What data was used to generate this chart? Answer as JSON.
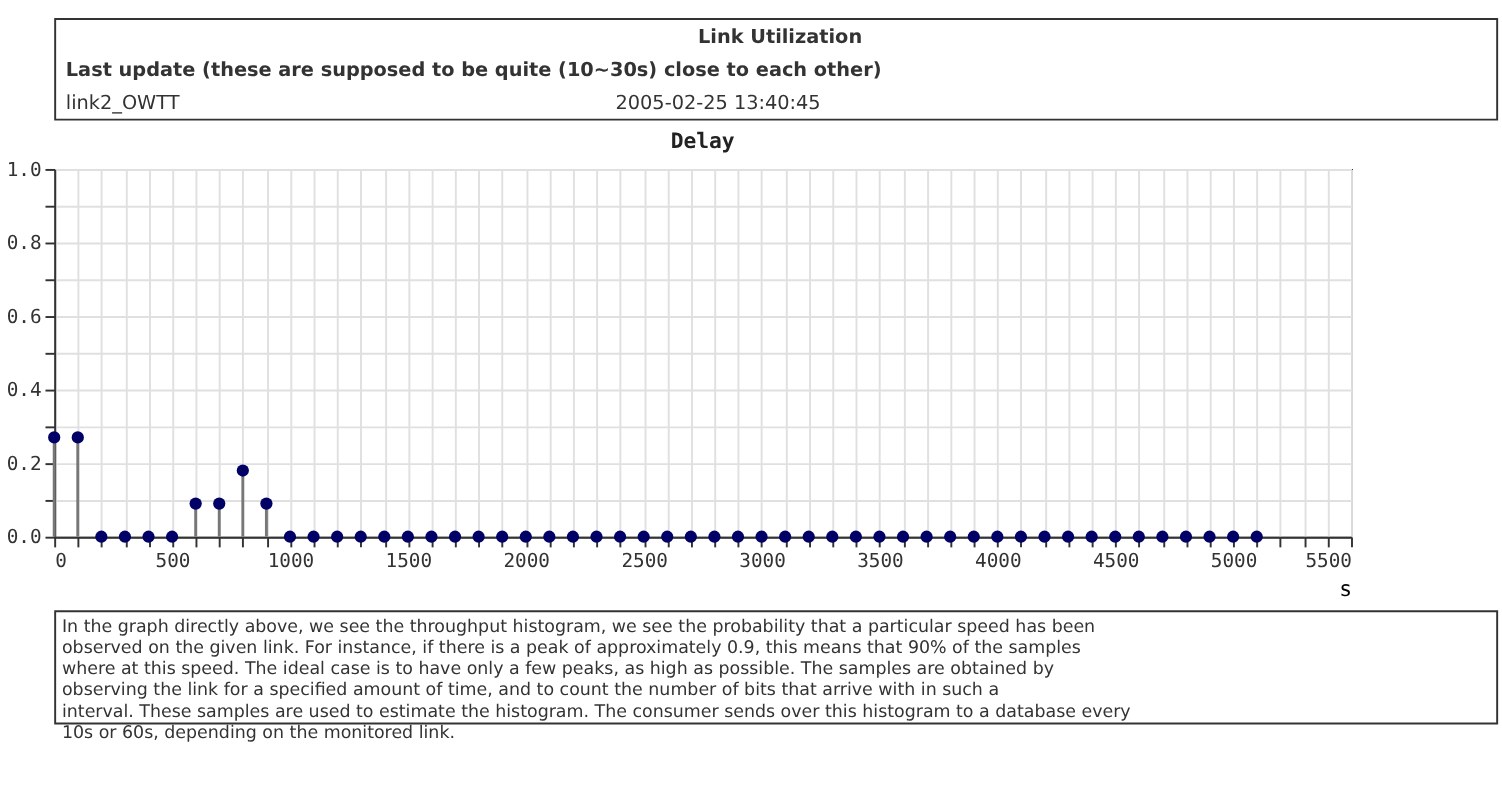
{
  "chart_data": {
    "type": "lollipop",
    "title": "Delay",
    "xlabel": "s",
    "annotations": [
      "Link Utilization",
      "Last update (these are supposed to be quite (10~30s) close to each other)",
      "link2_OWTT",
      "2005-02-25 13:40:45",
      "In the graph directly above, we see the throughput histogram, we see the probability that a particular speed has been observed on the given link. For instance, if there is a peak of approximately 0.9, this means that 90% of the samples where at this speed. The ideal case is to have only a few peaks, as high as possible. The samples are obtained by observing the link for a specified amount of time, and to count the number of bits that arrive with in such a interval. These samples are used to estimate the histogram. The consumer sends over this histogram to a database every 10s or 60s, depending on the monitored link."
    ],
    "x": [
      0,
      100,
      200,
      300,
      400,
      500,
      600,
      700,
      800,
      900,
      1000,
      1100,
      1200,
      1300,
      1400,
      1500,
      1600,
      1700,
      1800,
      1900,
      2000,
      2100,
      2200,
      2300,
      2400,
      2500,
      2600,
      2700,
      2800,
      2900,
      3000,
      3100,
      3200,
      3300,
      3400,
      3500,
      3600,
      3700,
      3800,
      3900,
      4000,
      4100,
      4200,
      4300,
      4400,
      4500,
      4600,
      4700,
      4800,
      4900,
      5000,
      5100
    ],
    "series": [
      {
        "color": "#000066",
        "values": [
          0.27,
          0.27,
          0,
          0,
          0,
          0,
          0.09,
          0.09,
          0.18,
          0.09,
          0,
          0,
          0,
          0,
          0,
          0,
          0,
          0,
          0,
          0,
          0,
          0,
          0,
          0,
          0,
          0,
          0,
          0,
          0,
          0,
          0,
          0,
          0,
          0,
          0,
          0,
          0,
          0,
          0,
          0,
          0,
          0,
          0,
          0,
          0,
          0,
          0,
          0,
          0,
          0,
          0,
          0
        ]
      }
    ],
    "xlim": [
      0,
      5500
    ],
    "xticks": [
      0,
      {
        "value": 100,
        "label": null
      },
      {
        "value": 200,
        "label": null
      },
      {
        "value": 300,
        "label": null
      },
      {
        "value": 400,
        "label": null
      },
      500,
      {
        "value": 600,
        "label": null
      },
      {
        "value": 700,
        "label": null
      },
      {
        "value": 800,
        "label": null
      },
      {
        "value": 900,
        "label": null
      },
      1000,
      {
        "value": 1100,
        "label": null
      },
      {
        "value": 1200,
        "label": null
      },
      {
        "value": 1300,
        "label": null
      },
      {
        "value": 1400,
        "label": null
      },
      1500,
      {
        "value": 1600,
        "label": null
      },
      {
        "value": 1700,
        "label": null
      },
      {
        "value": 1800,
        "label": null
      },
      {
        "value": 1900,
        "label": null
      },
      2000,
      {
        "value": 2100,
        "label": null
      },
      {
        "value": 2200,
        "label": null
      },
      {
        "value": 2300,
        "label": null
      },
      {
        "value": 2400,
        "label": null
      },
      2500,
      {
        "value": 2600,
        "label": null
      },
      {
        "value": 2700,
        "label": null
      },
      {
        "value": 2800,
        "label": null
      },
      {
        "value": 2900,
        "label": null
      },
      3000,
      {
        "value": 3100,
        "label": null
      },
      {
        "value": 3200,
        "label": null
      },
      {
        "value": 3300,
        "label": null
      },
      {
        "value": 3400,
        "label": null
      },
      3500,
      {
        "value": 3600,
        "label": null
      },
      {
        "value": 3700,
        "label": null
      },
      {
        "value": 3800,
        "label": null
      },
      {
        "value": 3900,
        "label": null
      },
      4000,
      {
        "value": 4100,
        "label": null
      },
      {
        "value": 4200,
        "label": null
      },
      {
        "value": 4300,
        "label": null
      },
      {
        "value": 4400,
        "label": null
      },
      4500,
      {
        "value": 4600,
        "label": null
      },
      {
        "value": 4700,
        "label": null
      },
      {
        "value": 4800,
        "label": null
      },
      {
        "value": 4900,
        "label": null
      },
      5000,
      {
        "value": 5100,
        "label": null
      },
      {
        "value": 5200,
        "label": null
      },
      {
        "value": 5300,
        "label": null
      },
      {
        "value": 5400,
        "label": null
      },
      5500
    ],
    "ylim": [
      0,
      1
    ],
    "yticks": [
      {
        "value": 0,
        "label": "0.0"
      },
      {
        "value": 0.1,
        "label": null
      },
      {
        "value": 0.2,
        "label": "0.2"
      },
      {
        "value": 0.3,
        "label": null
      },
      {
        "value": 0.4,
        "label": "0.4"
      },
      {
        "value": 0.5,
        "label": null
      },
      {
        "value": 0.6,
        "label": "0.6"
      },
      {
        "value": 0.7,
        "label": null
      },
      {
        "value": 0.8,
        "label": "0.8"
      },
      {
        "value": 0.9,
        "label": null
      },
      {
        "value": 1,
        "label": "1.0"
      }
    ],
    "grid": true,
    "marker": "circle",
    "legend": false
  }
}
